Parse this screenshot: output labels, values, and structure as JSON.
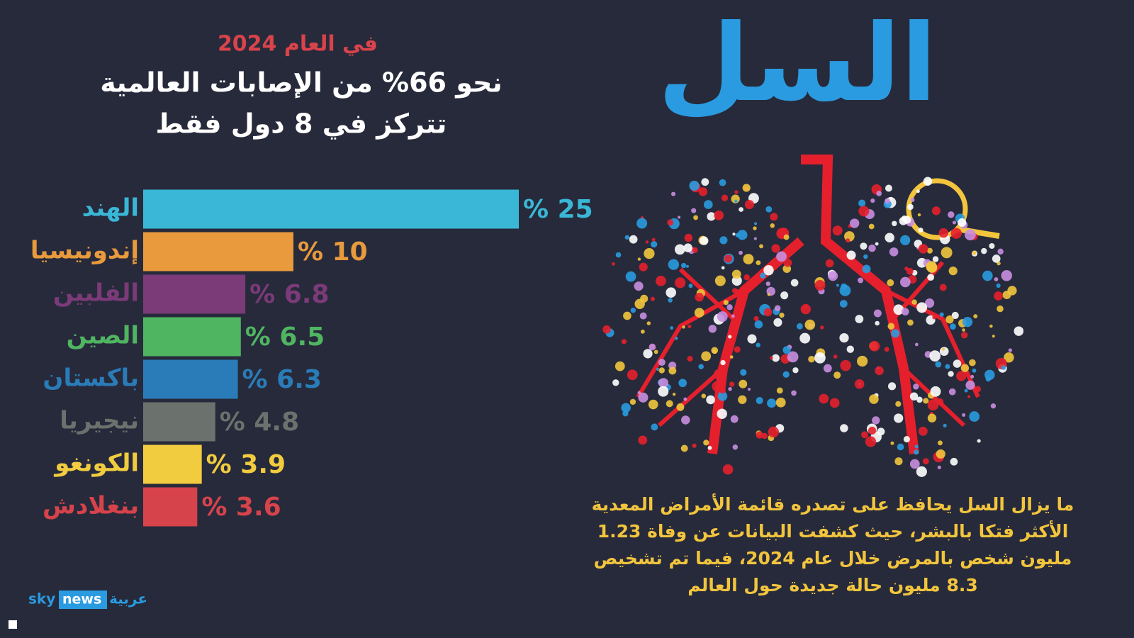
{
  "chart_data": {
    "type": "bar",
    "orientation": "horizontal",
    "title": "في العام 2024",
    "subtitle": [
      "نحو 66% من الإصابات العالمية",
      "تتركز في 8 دول فقط"
    ],
    "categories": [
      "الهند",
      "إندونيسيا",
      "الفلبين",
      "الصين",
      "باكستان",
      "نيجيريا",
      "الكونغو",
      "بنغلادش"
    ],
    "values": [
      25,
      10,
      6.8,
      6.5,
      6.3,
      4.8,
      3.9,
      3.6
    ],
    "value_labels": [
      "% 25",
      "% 10",
      "% 6.8",
      "% 6.5",
      "% 6.3",
      "% 4.8",
      "% 3.9",
      "% 3.6"
    ],
    "colors": [
      "#3ab7d6",
      "#e89a3c",
      "#7b3a78",
      "#4fb561",
      "#2a7cb8",
      "#6b716c",
      "#f2cc3f",
      "#d6434b"
    ]
  },
  "header": {
    "title": "السل"
  },
  "description": [
    "ما يزال السل يحافظ على تصدره قائمة الأمراض المعدية",
    "الأكثر فتكا بالبشر، حيث كشفت البيانات عن وفاة 1.23",
    "مليون شخص بالمرض خلال عام 2024، فيما تم تشخيص",
    "8.3 مليون حالة جديدة حول العالم"
  ],
  "logo": {
    "brand": "sky",
    "product": "news",
    "language": "عربية"
  }
}
